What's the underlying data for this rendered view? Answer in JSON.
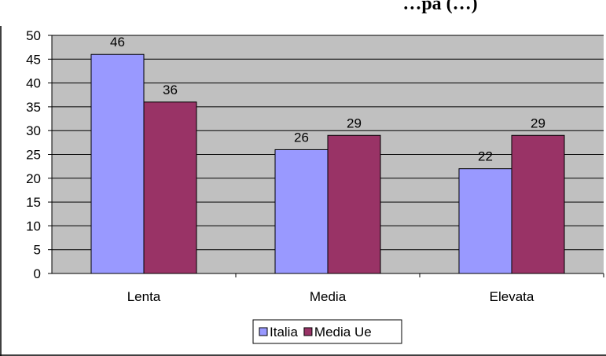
{
  "chart_data": {
    "type": "bar",
    "title": "…pa (…)",
    "categories": [
      "Lenta",
      "Media",
      "Elevata"
    ],
    "series": [
      {
        "name": "Italia",
        "values": [
          46,
          26,
          22
        ],
        "color": "#9999ff"
      },
      {
        "name": "Media Ue",
        "values": [
          36,
          29,
          29
        ],
        "color": "#993366"
      }
    ],
    "ylim": [
      0,
      50
    ],
    "yticks": [
      0,
      5,
      10,
      15,
      20,
      25,
      30,
      35,
      40,
      45,
      50
    ],
    "grid": true,
    "plot_background": "#c0c0c0",
    "legend_position": "bottom",
    "xlabel": "",
    "ylabel": ""
  }
}
